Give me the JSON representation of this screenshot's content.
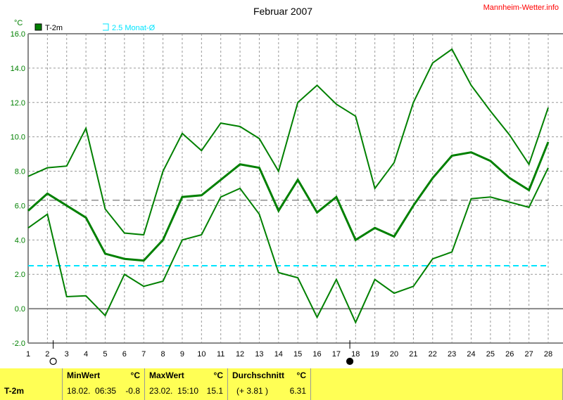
{
  "site_label": "Mannheim-Wetter.info",
  "chart_data": {
    "type": "line",
    "title": "Februar 2007",
    "ylabel": "°C",
    "ylim": [
      -2,
      16
    ],
    "yticks": [
      "-2.0",
      "0.0",
      "2.0",
      "4.0",
      "6.0",
      "8.0",
      "10.0",
      "12.0",
      "14.0",
      "16.0"
    ],
    "x": [
      1,
      2,
      3,
      4,
      5,
      6,
      7,
      8,
      9,
      10,
      11,
      12,
      13,
      14,
      15,
      16,
      17,
      18,
      19,
      20,
      21,
      22,
      23,
      24,
      25,
      26,
      27,
      28
    ],
    "grid": true,
    "legend": [
      {
        "label": "T-2m",
        "color": "#008000"
      },
      {
        "label": "2.5 Monat-Ø",
        "color": "#00e5ff"
      }
    ],
    "series": [
      {
        "role": "max",
        "color": "#008000",
        "values": [
          7.7,
          8.2,
          8.3,
          10.5,
          5.8,
          4.4,
          4.3,
          8.0,
          10.2,
          9.2,
          10.8,
          10.6,
          9.9,
          8.0,
          12.0,
          13.0,
          11.9,
          11.2,
          7.0,
          8.5,
          12.0,
          14.3,
          15.1,
          13.0,
          11.5,
          10.1,
          8.4,
          11.7
        ]
      },
      {
        "role": "mean",
        "color": "#008000",
        "values": [
          5.7,
          6.7,
          6.0,
          5.3,
          3.2,
          2.9,
          2.8,
          4.0,
          6.5,
          6.6,
          7.5,
          8.4,
          8.2,
          5.7,
          7.5,
          5.6,
          6.5,
          4.0,
          4.7,
          4.2,
          6.0,
          7.6,
          8.9,
          9.1,
          8.6,
          7.6,
          6.9,
          9.7
        ]
      },
      {
        "role": "min",
        "color": "#008000",
        "values": [
          4.7,
          5.5,
          0.7,
          0.75,
          -0.4,
          2.0,
          1.3,
          1.6,
          4.0,
          4.3,
          6.5,
          7.0,
          5.5,
          2.1,
          1.8,
          -0.5,
          1.7,
          -0.8,
          1.7,
          0.9,
          1.3,
          2.9,
          3.3,
          6.4,
          6.5,
          6.2,
          5.9,
          8.2
        ]
      }
    ],
    "reference_lines": [
      {
        "value": 6.31,
        "color": "#555555",
        "style": "dashed"
      },
      {
        "value": 2.5,
        "color": "#00e5ff",
        "style": "dashed"
      }
    ],
    "moon_phases": [
      {
        "day": 2.3,
        "phase": "full-moon"
      },
      {
        "day": 17.7,
        "phase": "new-moon"
      }
    ]
  },
  "table": {
    "row_label": "T-2m",
    "min": {
      "header": "MinWert",
      "unit": "°C",
      "when": "18.02.  06:35",
      "value": "-0.8"
    },
    "max": {
      "header": "MaxWert",
      "unit": "°C",
      "when": "23.02.  15:10",
      "value": "15.1"
    },
    "avg": {
      "header": "Durchschnitt",
      "unit": "°C",
      "when": "(+ 3.81 )",
      "value": "6.31"
    }
  }
}
